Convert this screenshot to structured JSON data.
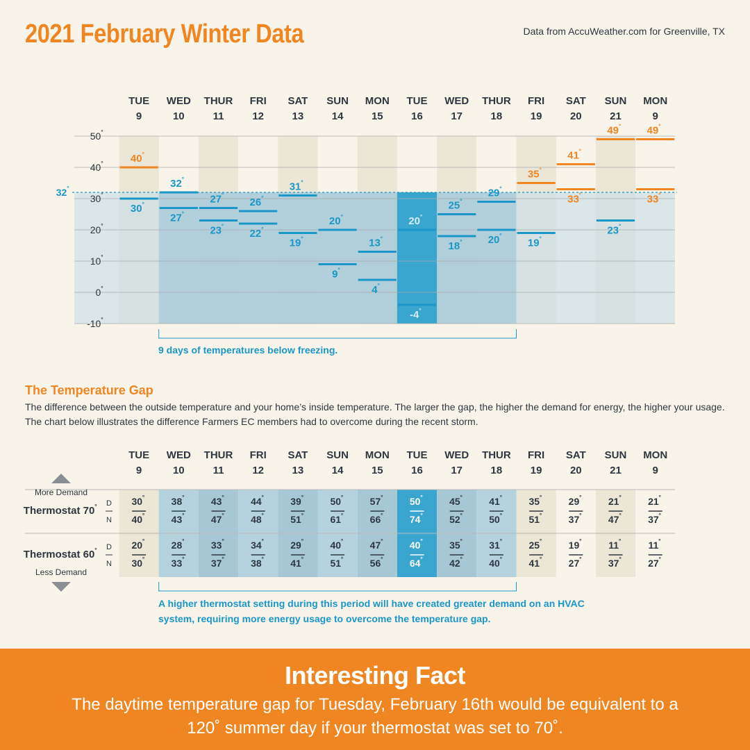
{
  "header": {
    "title": "2021 February Winter Data",
    "source": "Data from AccuWeather.com for Greenville, TX"
  },
  "colors": {
    "orange": "#ef8622",
    "blue": "#1b96c8",
    "dark_text": "#2d3742",
    "background": "#f8f4e9",
    "freeze_fill": "#a9cbd8",
    "coldest_fill": "#3aa6cf"
  },
  "chart_data": {
    "type": "range",
    "title": "2021 February Winter Data",
    "days": [
      {
        "dow": "TUE",
        "date": "9",
        "high": 40,
        "low": 30
      },
      {
        "dow": "WED",
        "date": "10",
        "high": 32,
        "low": 27
      },
      {
        "dow": "THUR",
        "date": "11",
        "high": 27,
        "low": 23
      },
      {
        "dow": "FRI",
        "date": "12",
        "high": 26,
        "low": 22
      },
      {
        "dow": "SAT",
        "date": "13",
        "high": 31,
        "low": 19
      },
      {
        "dow": "SUN",
        "date": "14",
        "high": 20,
        "low": 9
      },
      {
        "dow": "MON",
        "date": "15",
        "high": 13,
        "low": 4
      },
      {
        "dow": "TUE",
        "date": "16",
        "high": 20,
        "low": -4
      },
      {
        "dow": "WED",
        "date": "17",
        "high": 25,
        "low": 18
      },
      {
        "dow": "THUR",
        "date": "18",
        "high": 29,
        "low": 20
      },
      {
        "dow": "FRI",
        "date": "19",
        "high": 35,
        "low": 19
      },
      {
        "dow": "SAT",
        "date": "20",
        "high": 41,
        "low": 33
      },
      {
        "dow": "SUN",
        "date": "21",
        "high": 49,
        "low": 23
      },
      {
        "dow": "MON",
        "date": "9",
        "high": 49,
        "low": 33
      }
    ],
    "y_ticks": [
      50,
      40,
      30,
      20,
      10,
      0,
      -10
    ],
    "ylim": [
      -10,
      50
    ],
    "freezing_line": 32,
    "freezing_label": "32",
    "freeze_days": [
      1,
      9
    ],
    "coldest_day": 7,
    "freeze_note": "9 days of temperatures below freezing.",
    "gap_table": {
      "rows": [
        {
          "label": "Thermostat 70",
          "d": [
            30,
            38,
            43,
            44,
            39,
            50,
            57,
            50,
            45,
            41,
            35,
            29,
            21,
            21
          ],
          "n": [
            40,
            43,
            47,
            48,
            51,
            61,
            66,
            74,
            52,
            50,
            51,
            37,
            47,
            37
          ]
        },
        {
          "label": "Thermostat 60",
          "d": [
            20,
            28,
            33,
            34,
            29,
            40,
            47,
            40,
            35,
            31,
            25,
            19,
            11,
            11
          ],
          "n": [
            30,
            33,
            37,
            38,
            41,
            51,
            56,
            64,
            42,
            40,
            41,
            27,
            37,
            27
          ]
        }
      ],
      "d_label": "D",
      "n_label": "N",
      "more_demand": "More Demand",
      "less_demand": "Less Demand"
    }
  },
  "gap_section": {
    "title": "The Temperature Gap",
    "description": "The difference between the outside temperature and your home’s inside temperature. The larger the gap, the higher the demand for energy, the higher your usage. The chart below illustrates the difference Farmers EC members had to overcome during the recent storm.",
    "note": "A higher thermostat setting during this period will have created greater demand on an HVAC system, requiring more energy usage to overcome the temperature gap."
  },
  "fact": {
    "title": "Interesting Fact",
    "body": "The daytime temperature gap for Tuesday, February 16th would be equivalent to a 120˚ summer day if your thermostat was set to 70˚."
  }
}
